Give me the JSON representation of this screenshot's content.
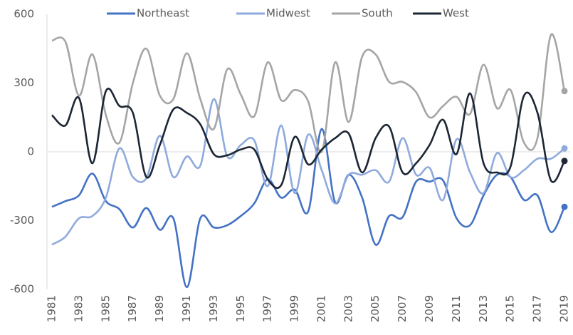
{
  "chart_data": {
    "type": "line",
    "categories": [
      "1981",
      null,
      "1983",
      null,
      "1985",
      null,
      "1987",
      null,
      "1989",
      null,
      "1991",
      null,
      "1993",
      null,
      "1995",
      null,
      "1997",
      null,
      "1999",
      null,
      "2001",
      null,
      "2003",
      null,
      "2005",
      null,
      "2007",
      null,
      "2009",
      null,
      "2011",
      null,
      "2013",
      null,
      "2015",
      null,
      "2017",
      null,
      "2019"
    ],
    "series": [
      {
        "name": "Northeast",
        "color": "#4472c4",
        "values": [
          -240,
          -215,
          -190,
          -95,
          -215,
          -250,
          -330,
          -245,
          -340,
          -290,
          -590,
          -290,
          -330,
          -320,
          -280,
          -225,
          -120,
          -200,
          -165,
          -260,
          100,
          -220,
          -100,
          -200,
          -405,
          -280,
          -285,
          -130,
          -130,
          -125,
          -290,
          -320,
          -190,
          -100,
          -110,
          -210,
          -190,
          -350,
          -240
        ]
      },
      {
        "name": "Midwest",
        "color": "#8faadc",
        "values": [
          -405,
          -370,
          -290,
          -280,
          -200,
          15,
          -110,
          -115,
          70,
          -110,
          -20,
          -60,
          230,
          -20,
          30,
          50,
          -150,
          115,
          -180,
          75,
          -80,
          -225,
          -100,
          -100,
          -80,
          -130,
          60,
          -100,
          -70,
          -210,
          55,
          -90,
          -180,
          -5,
          -110,
          -80,
          -30,
          -30,
          15
        ]
      },
      {
        "name": "South",
        "color": "#a5a5a5",
        "values": [
          485,
          480,
          245,
          425,
          160,
          40,
          300,
          450,
          245,
          230,
          430,
          230,
          100,
          360,
          250,
          155,
          390,
          225,
          270,
          220,
          0,
          390,
          130,
          415,
          425,
          305,
          305,
          260,
          150,
          200,
          240,
          165,
          380,
          190,
          270,
          40,
          60,
          510,
          265
        ]
      },
      {
        "name": "West",
        "color": "#1c2634",
        "values": [
          160,
          115,
          235,
          -50,
          265,
          200,
          170,
          -110,
          30,
          185,
          170,
          120,
          -10,
          -15,
          10,
          10,
          -120,
          -145,
          65,
          -55,
          10,
          60,
          80,
          -90,
          60,
          110,
          -90,
          -50,
          30,
          140,
          -10,
          255,
          -50,
          -90,
          -65,
          245,
          170,
          -125,
          -40
        ]
      }
    ],
    "ylim": [
      -600,
      600
    ],
    "yticks": [
      -600,
      -300,
      0,
      300,
      600
    ],
    "legend": "top"
  }
}
